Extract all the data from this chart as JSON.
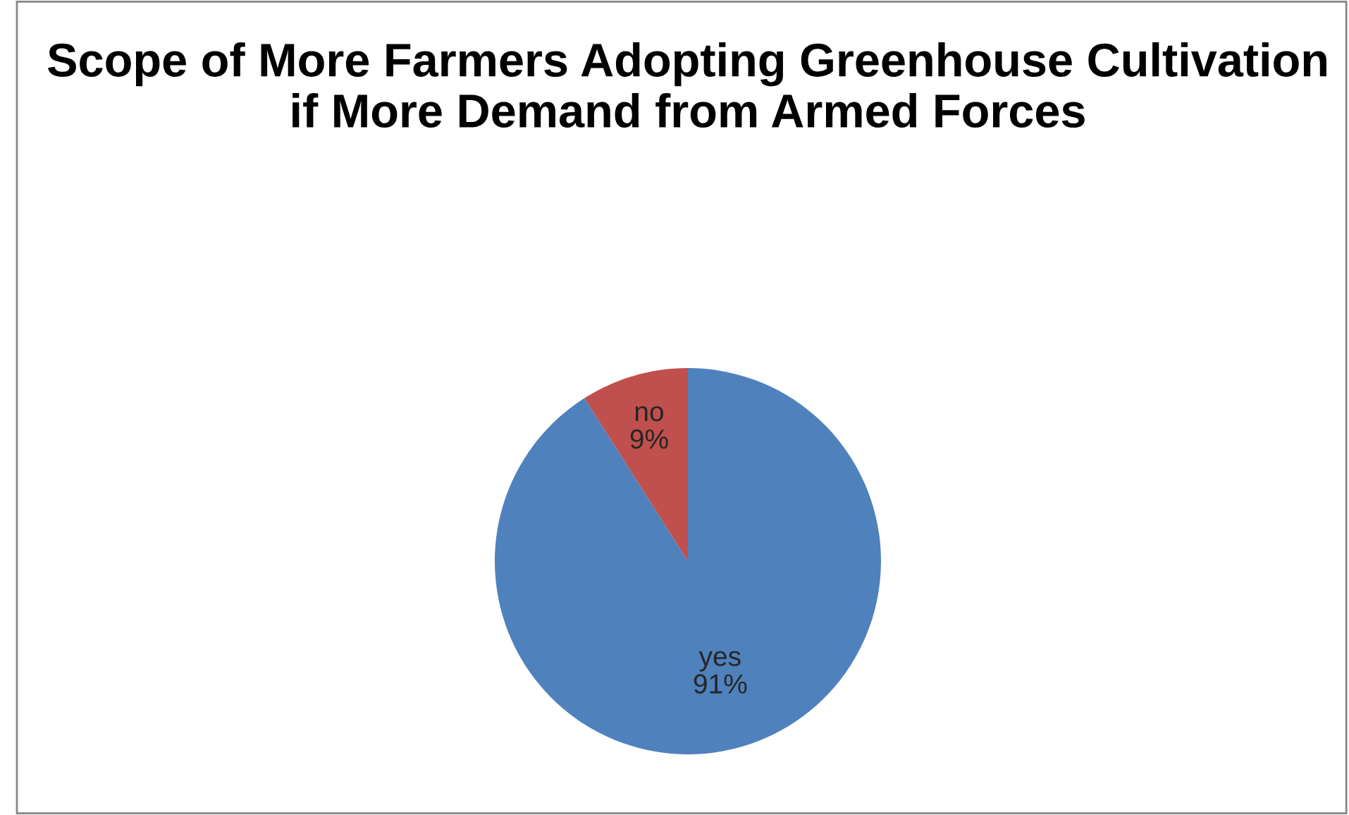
{
  "chart_data": {
    "type": "pie",
    "title": "Scope of More Farmers Adopting Greenhouse Cultivation if More Demand from Armed Forces",
    "categories": [
      "yes",
      "no"
    ],
    "values": [
      91,
      9
    ],
    "colors": [
      "#4f81bd",
      "#c0504d"
    ],
    "value_labels": [
      "91%",
      "9%"
    ],
    "legend": false
  }
}
